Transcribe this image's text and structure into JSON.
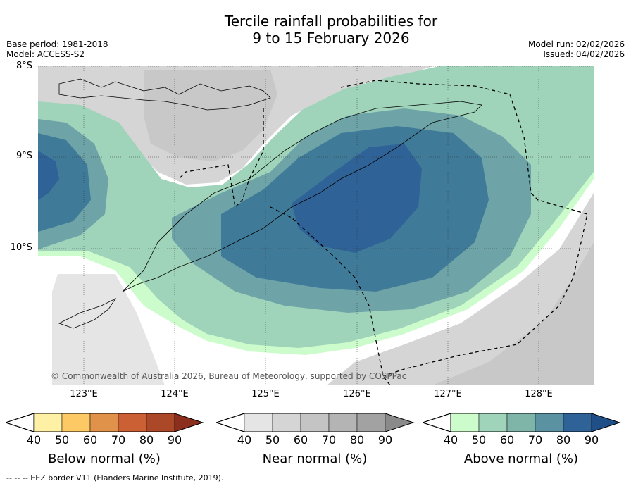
{
  "title": {
    "line1": "Tercile rainfall probabilities for",
    "line2": "9 to 15 February 2026"
  },
  "meta_left": {
    "base_period": "Base period: 1981-2018",
    "model": "Model: ACCESS-S2"
  },
  "meta_right": {
    "model_run": "Model run: 02/02/2026",
    "issued": "Issued: 04/02/2026"
  },
  "latitude_labels": [
    "8°S",
    "9°S",
    "10°S"
  ],
  "longitude_labels": [
    "123°E",
    "124°E",
    "125°E",
    "126°E",
    "127°E",
    "128°E"
  ],
  "copyright": "© Commonwealth of Australia 2026, Bureau of Meteorology, supported by COSPPac",
  "colorbars": [
    {
      "label": "Below normal (%)",
      "ticks": [
        "40",
        "50",
        "60",
        "70",
        "80",
        "90"
      ],
      "colors": [
        "#fef0a5",
        "#fdc964",
        "#e0924a",
        "#cb6034",
        "#ab4828",
        "#8b2e1e"
      ]
    },
    {
      "label": "Near normal (%)",
      "ticks": [
        "40",
        "50",
        "60",
        "70",
        "80",
        "90"
      ],
      "colors": [
        "#e5e5e5",
        "#d5d5d5",
        "#c4c4c4",
        "#b4b4b4",
        "#a2a2a2",
        "#8a8a8a"
      ]
    },
    {
      "label": "Above normal (%)",
      "ticks": [
        "40",
        "50",
        "60",
        "70",
        "80",
        "90"
      ],
      "colors": [
        "#ccfccc",
        "#9fd3ba",
        "#7eb5a8",
        "#5b92a2",
        "#2f6398",
        "#1f4f86"
      ]
    }
  ],
  "map_colors": {
    "white": "#ffffff",
    "near40": "#e5e5e5",
    "near50": "#d5d5d5",
    "near60": "#c8c8c8",
    "above40": "#ccfccc",
    "above50": "#9fd3ba",
    "above60": "#6ea4a7",
    "above70": "#3f7b99",
    "above80": "#2f6398"
  },
  "footnote": "--  --  -- EEZ border V11 (Flanders Marine Institute, 2019)."
}
